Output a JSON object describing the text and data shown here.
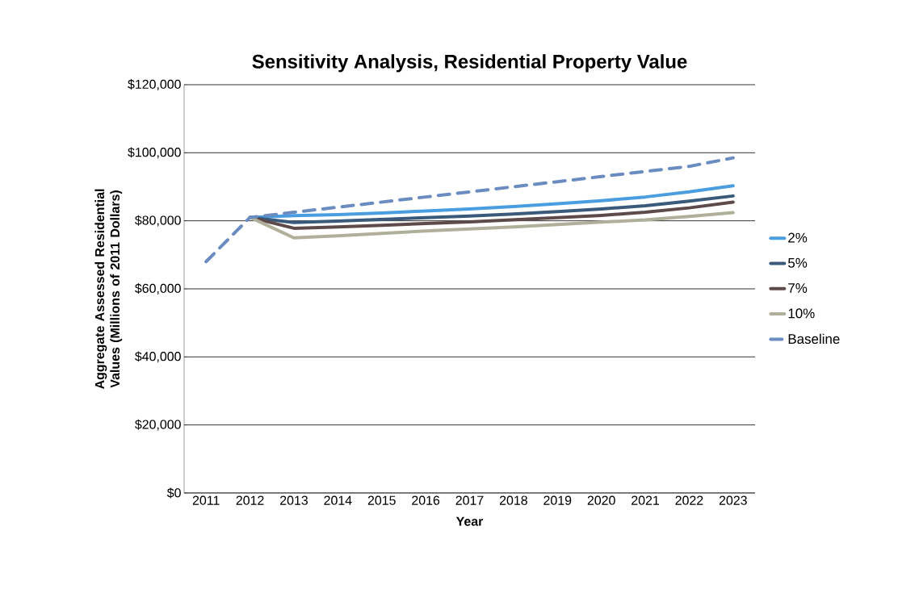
{
  "chart_data": {
    "type": "line",
    "title": "Sensitivity Analysis, Residential Property Value",
    "xlabel": "Year",
    "ylabel": "Aggregate Assessed Residential Values (Millions of 2011 Dollars)",
    "categories": [
      "2011",
      "2012",
      "2013",
      "2014",
      "2015",
      "2016",
      "2017",
      "2018",
      "2019",
      "2020",
      "2021",
      "2022",
      "2023"
    ],
    "series": [
      {
        "name": "2%",
        "color": "#4a9ee0",
        "values": [
          null,
          81000,
          81500,
          81800,
          82300,
          82900,
          83500,
          84200,
          85000,
          85900,
          87000,
          88500,
          90300
        ]
      },
      {
        "name": "5%",
        "color": "#3b5a7a",
        "values": [
          null,
          81000,
          79500,
          79900,
          80400,
          80900,
          81400,
          82000,
          82700,
          83500,
          84400,
          85800,
          87300
        ]
      },
      {
        "name": "7%",
        "color": "#5e4a4a",
        "values": [
          null,
          81000,
          77800,
          78200,
          78700,
          79200,
          79700,
          80300,
          80900,
          81600,
          82500,
          83800,
          85500
        ]
      },
      {
        "name": "10%",
        "color": "#b0b09a",
        "values": [
          null,
          81000,
          75000,
          75600,
          76300,
          77000,
          77600,
          78200,
          78900,
          79600,
          80300,
          81300,
          82400
        ]
      },
      {
        "name": "Baseline",
        "color": "#6a8cc0",
        "line_style": "dashed",
        "values": [
          68000,
          81000,
          82500,
          84000,
          85500,
          87000,
          88500,
          90000,
          91500,
          93000,
          94500,
          96000,
          98500
        ]
      }
    ],
    "ylim": [
      0,
      120000
    ],
    "yticks": [
      {
        "value": 0,
        "label": "$0"
      },
      {
        "value": 20000,
        "label": "$20,000"
      },
      {
        "value": 40000,
        "label": "$40,000"
      },
      {
        "value": 60000,
        "label": "$60,000"
      },
      {
        "value": 80000,
        "label": "$80,000"
      },
      {
        "value": 100000,
        "label": "$100,000"
      },
      {
        "value": 120000,
        "label": "$120,000"
      }
    ],
    "grid": "y",
    "legend": "right",
    "line_style": "solid",
    "marker": "none"
  }
}
